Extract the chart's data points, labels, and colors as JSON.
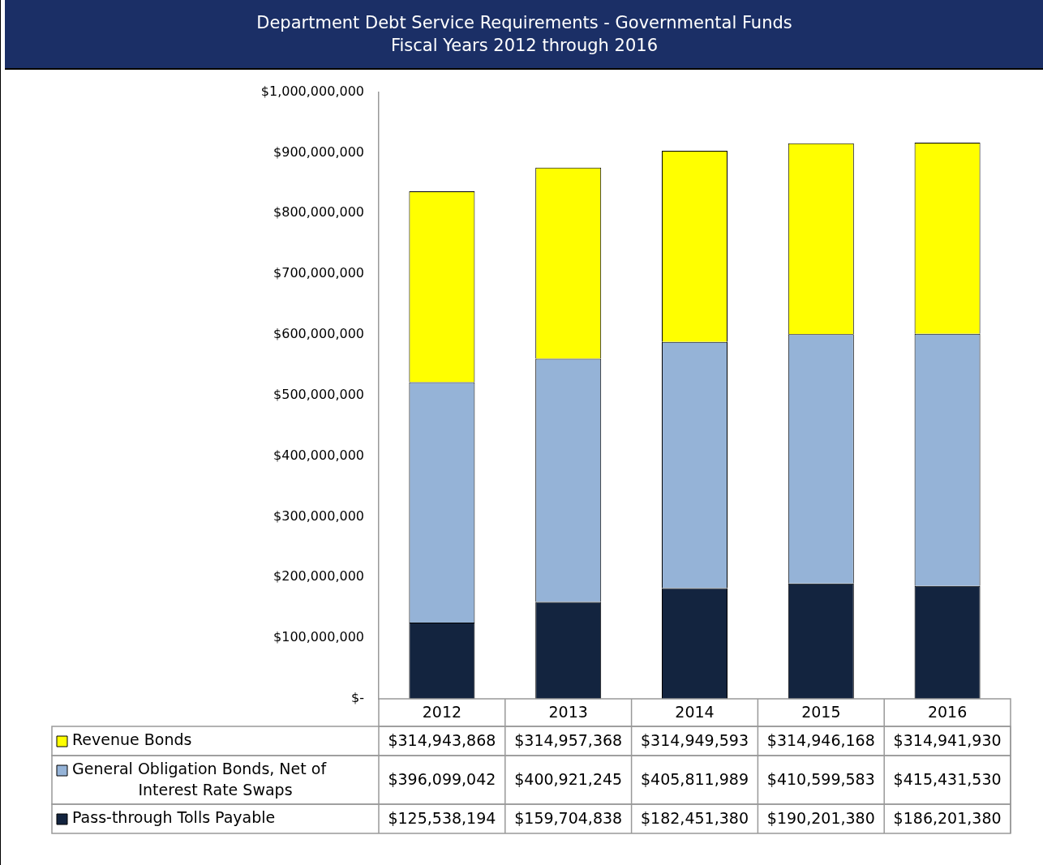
{
  "chart_data": {
    "type": "bar",
    "title": "Department Debt Service Requirements - Governmental Funds",
    "subtitle": "Fiscal Years 2012 through 2016",
    "categories": [
      "2012",
      "2013",
      "2014",
      "2015",
      "2016"
    ],
    "stacked": true,
    "legend": "bottom",
    "grid": false,
    "ylim": [
      0,
      1000000000
    ],
    "yticks": [
      {
        "value": 0,
        "label": "$-"
      },
      {
        "value": 100000000,
        "label": "$100,000,000"
      },
      {
        "value": 200000000,
        "label": "$200,000,000"
      },
      {
        "value": 300000000,
        "label": "$300,000,000"
      },
      {
        "value": 400000000,
        "label": "$400,000,000"
      },
      {
        "value": 500000000,
        "label": "$500,000,000"
      },
      {
        "value": 600000000,
        "label": "$600,000,000"
      },
      {
        "value": 700000000,
        "label": "$700,000,000"
      },
      {
        "value": 800000000,
        "label": "$800,000,000"
      },
      {
        "value": 900000000,
        "label": "$900,000,000"
      },
      {
        "value": 1000000000,
        "label": "$1,000,000,000"
      }
    ],
    "series": [
      {
        "name": "Pass-through Tolls Payable",
        "color": "#13243f",
        "values": [
          125538194,
          159704838,
          182451380,
          190201380,
          186201380
        ],
        "value_labels": [
          "$125,538,194",
          "$159,704,838",
          "$182,451,380",
          "$190,201,380",
          "$186,201,380"
        ]
      },
      {
        "name": "General Obligation Bonds, Net of Interest Rate Swaps",
        "color": "#95b3d7",
        "values": [
          396099042,
          400921245,
          405811989,
          410599583,
          415431530
        ],
        "value_labels": [
          "$396,099,042",
          "$400,921,245",
          "$405,811,989",
          "$410,599,583",
          "$415,431,530"
        ]
      },
      {
        "name": "Revenue Bonds",
        "color": "#ffff00",
        "values": [
          314943868,
          314957368,
          314949593,
          314946168,
          314941930
        ],
        "value_labels": [
          "$314,943,868",
          "$314,957,368",
          "$314,949,593",
          "$314,946,168",
          "$314,941,930"
        ]
      }
    ]
  }
}
